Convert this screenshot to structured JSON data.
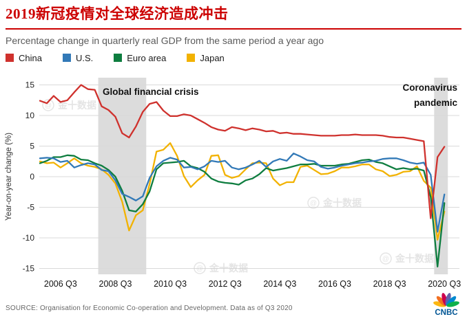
{
  "header": {
    "title": "2019新冠疫情对全球经济造成冲击",
    "subtitle": "Percentage change in quarterly real GDP from the same period a year ago",
    "accent_color": "#cc0000"
  },
  "watermark": {
    "text": "金十数据"
  },
  "chart_data": {
    "type": "line",
    "title": "Percentage change in quarterly real GDP from the same period a year ago",
    "xlabel": "",
    "ylabel": "Year-on-year change (%)",
    "ylim": [
      -15,
      15
    ],
    "yticks": [
      15,
      10,
      5,
      0,
      -5,
      -10,
      -15
    ],
    "grid": "horizontal",
    "legend_position": "top",
    "x_start": "2005 Q4",
    "x_frequency": "quarterly",
    "xticks": [
      "2006 Q3",
      "2008 Q3",
      "2010 Q3",
      "2012 Q3",
      "2014 Q3",
      "2016 Q3",
      "2018 Q3",
      "2020 Q3"
    ],
    "series": [
      {
        "name": "China",
        "color": "#cf312d",
        "values": [
          12.4,
          12.0,
          13.2,
          12.2,
          12.5,
          13.8,
          15.0,
          14.3,
          14.2,
          11.5,
          10.9,
          9.8,
          7.1,
          6.4,
          8.2,
          10.6,
          11.9,
          12.2,
          10.8,
          9.9,
          9.9,
          10.2,
          10.0,
          9.4,
          8.8,
          8.1,
          7.7,
          7.5,
          8.1,
          7.9,
          7.6,
          7.9,
          7.7,
          7.4,
          7.5,
          7.1,
          7.2,
          7.0,
          7.0,
          6.9,
          6.8,
          6.7,
          6.7,
          6.7,
          6.8,
          6.8,
          6.9,
          6.8,
          6.8,
          6.8,
          6.7,
          6.5,
          6.4,
          6.4,
          6.2,
          6.0,
          5.8,
          -6.8,
          3.2,
          4.9
        ]
      },
      {
        "name": "U.S.",
        "color": "#3279b7",
        "values": [
          3.0,
          3.1,
          3.0,
          2.4,
          2.6,
          1.5,
          1.9,
          2.2,
          2.0,
          1.1,
          0.9,
          -0.6,
          -2.8,
          -3.3,
          -3.9,
          -3.2,
          -0.2,
          1.7,
          2.6,
          3.1,
          2.8,
          1.5,
          1.6,
          1.2,
          1.7,
          2.6,
          2.4,
          2.6,
          1.5,
          1.2,
          1.5,
          2.0,
          2.6,
          1.6,
          2.5,
          2.9,
          2.6,
          3.8,
          3.3,
          2.7,
          2.5,
          1.6,
          1.3,
          1.5,
          1.8,
          2.0,
          2.2,
          2.3,
          2.5,
          2.6,
          2.9,
          3.0,
          3.0,
          2.7,
          2.3,
          2.1,
          2.3,
          0.3,
          -9.0,
          -2.9
        ]
      },
      {
        "name": "Euro area",
        "color": "#0e7d3f",
        "values": [
          2.2,
          2.6,
          3.2,
          3.2,
          3.5,
          3.4,
          2.8,
          2.7,
          2.2,
          1.8,
          1.1,
          0.0,
          -2.3,
          -5.5,
          -5.7,
          -4.5,
          -2.4,
          1.2,
          2.2,
          2.3,
          2.4,
          2.6,
          1.7,
          1.4,
          0.8,
          -0.3,
          -0.8,
          -1.0,
          -1.1,
          -1.3,
          -0.6,
          -0.3,
          0.4,
          1.4,
          1.0,
          1.2,
          1.4,
          1.7,
          2.0,
          2.0,
          2.1,
          1.8,
          1.8,
          1.8,
          2.0,
          2.1,
          2.4,
          2.7,
          2.8,
          2.4,
          2.2,
          1.7,
          1.2,
          1.4,
          1.2,
          1.3,
          1.0,
          -3.3,
          -14.7,
          -4.3
        ]
      },
      {
        "name": "Japan",
        "color": "#f2b200",
        "values": [
          2.5,
          2.2,
          2.3,
          1.5,
          2.2,
          3.0,
          2.2,
          1.8,
          1.6,
          1.2,
          0.3,
          -1.1,
          -4.1,
          -8.8,
          -6.3,
          -5.5,
          -1.2,
          4.1,
          4.4,
          5.5,
          3.4,
          0.1,
          -1.7,
          -0.6,
          0.3,
          3.4,
          3.5,
          0.3,
          -0.2,
          0.1,
          1.2,
          2.2,
          2.3,
          2.2,
          -0.3,
          -1.4,
          -0.9,
          -0.9,
          1.6,
          1.8,
          1.1,
          0.4,
          0.5,
          0.9,
          1.5,
          1.5,
          1.7,
          2.0,
          2.0,
          1.2,
          0.9,
          0.1,
          0.3,
          0.8,
          0.9,
          1.7,
          -0.7,
          -1.8,
          -10.3,
          -5.7
        ]
      }
    ],
    "bands": [
      {
        "from": "2008 Q1",
        "to": "2009 Q3"
      },
      {
        "from": "2020 Q2",
        "to": "2020 Q3"
      }
    ],
    "annotations": [
      {
        "lines": [
          "Global financial crisis"
        ],
        "x": 149,
        "y": 132,
        "anchor": "start"
      },
      {
        "lines": [
          "Coronavirus",
          "pandemic"
        ],
        "x": 664,
        "y": 126,
        "anchor": "end"
      }
    ]
  },
  "footer": {
    "source": "SOURCE: Organisation for Economic Co-operation and Development. Data as of Q3 2020",
    "brand": "CNBC"
  }
}
